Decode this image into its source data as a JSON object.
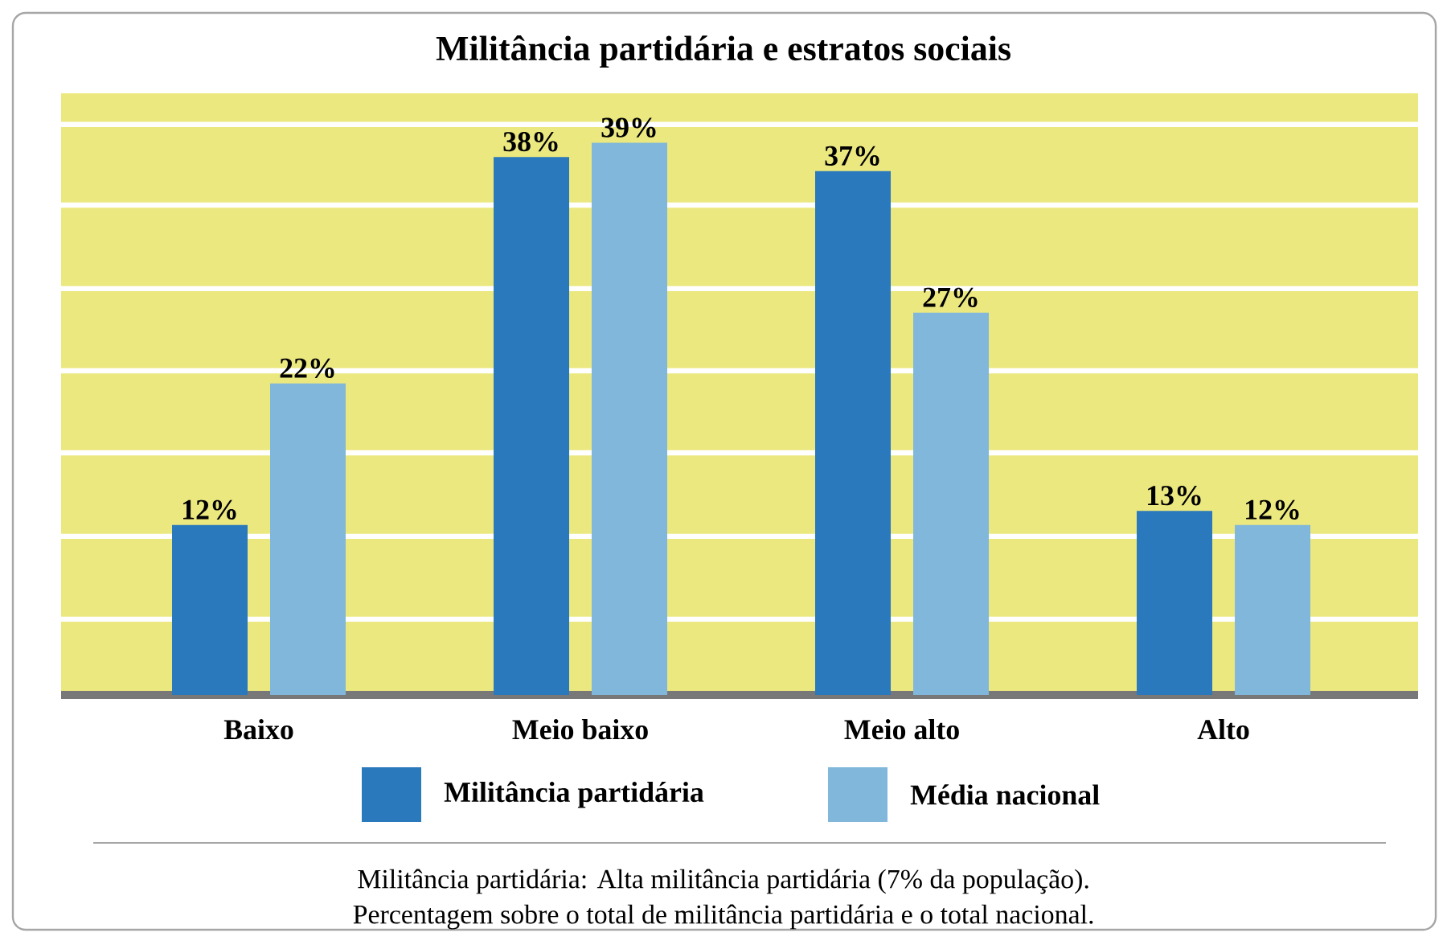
{
  "chart_data": {
    "type": "bar",
    "title": "Militância partidária e estratos sociais",
    "categories": [
      "Baixo",
      "Meio baixo",
      "Meio alto",
      "Alto"
    ],
    "series": [
      {
        "name": "Militância partidária",
        "color": "#2a79bc",
        "values": [
          12,
          38,
          37,
          13
        ],
        "value_labels": [
          "12%",
          "38%",
          "37%",
          "13%"
        ]
      },
      {
        "name": "Média nacional",
        "color": "#80b7da",
        "values": [
          22,
          39,
          27,
          12
        ],
        "value_labels": [
          "22%",
          "39%",
          "27%",
          "12%"
        ]
      }
    ],
    "ylim": [
      0,
      42.5
    ],
    "yticks": [
      {
        "value": 5.35,
        "label": null
      },
      {
        "value": 11.2,
        "label": null
      },
      {
        "value": 17.1,
        "label": null
      },
      {
        "value": 22.9,
        "label": null
      },
      {
        "value": 28.7,
        "label": null
      },
      {
        "value": 34.6,
        "label": null
      },
      {
        "value": 40.3,
        "label": null
      }
    ],
    "tick_labels": "x",
    "grid": "y",
    "legend": "bottom",
    "annotations": [
      "Militância partidária: Alta militância partidária (7% da população).",
      "Percentagem sobre o total de militância partidária e o total nacional."
    ]
  }
}
